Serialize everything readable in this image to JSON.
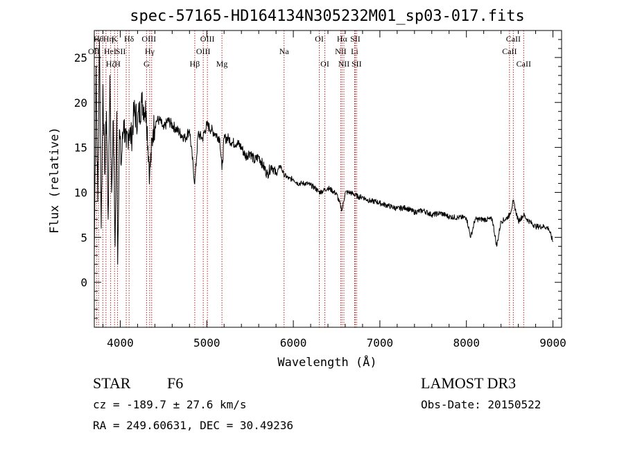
{
  "chart_data": {
    "type": "line",
    "title": "spec-57165-HD164134N305232M01_sp03-017.fits",
    "xlabel": "Wavelength (Å)",
    "ylabel": "Flux (relative)",
    "xlim": [
      3700,
      9100
    ],
    "ylim": [
      -5,
      28
    ],
    "xticks": [
      4000,
      5000,
      6000,
      7000,
      8000,
      9000
    ],
    "yticks": [
      0,
      5,
      10,
      15,
      20,
      25
    ],
    "series": [
      {
        "name": "flux",
        "x": [
          3700,
          3720,
          3740,
          3760,
          3780,
          3800,
          3820,
          3840,
          3860,
          3880,
          3900,
          3920,
          3940,
          3960,
          3970,
          3990,
          4010,
          4040,
          4070,
          4100,
          4130,
          4160,
          4200,
          4250,
          4300,
          4340,
          4380,
          4420,
          4460,
          4500,
          4550,
          4600,
          4650,
          4700,
          4750,
          4800,
          4861,
          4900,
          4950,
          5000,
          5050,
          5100,
          5150,
          5175,
          5200,
          5250,
          5300,
          5350,
          5400,
          5450,
          5500,
          5550,
          5600,
          5650,
          5700,
          5750,
          5800,
          5850,
          5890,
          5950,
          6000,
          6050,
          6100,
          6150,
          6200,
          6250,
          6300,
          6350,
          6400,
          6450,
          6500,
          6563,
          6600,
          6650,
          6700,
          6750,
          6800,
          6850,
          6900,
          6950,
          7000,
          7100,
          7200,
          7300,
          7400,
          7500,
          7600,
          7700,
          7800,
          7900,
          8000,
          8050,
          8100,
          8200,
          8300,
          8350,
          8400,
          8450,
          8500,
          8542,
          8600,
          8662,
          8700,
          8800,
          8900,
          8950,
          9000
        ],
        "values": [
          3,
          24,
          9,
          27,
          6,
          22,
          12,
          19,
          7,
          23,
          10,
          18,
          4,
          19,
          2,
          17,
          13,
          18,
          15,
          17,
          16,
          19,
          18,
          20,
          19,
          12,
          17,
          18,
          18,
          17,
          18,
          17.5,
          17,
          16.5,
          16,
          17,
          11,
          16.5,
          16,
          17.5,
          17,
          16.5,
          16,
          12.5,
          16,
          16,
          15.5,
          15.5,
          15,
          14,
          14.5,
          13.5,
          14,
          13,
          12,
          13,
          12,
          13,
          12,
          11.5,
          11.5,
          11,
          11,
          11,
          10.8,
          10.5,
          10,
          10.2,
          10.5,
          10.2,
          9.8,
          8,
          10,
          10,
          9.8,
          9.5,
          9.5,
          9.2,
          9,
          9,
          8.8,
          8.5,
          8.2,
          8.3,
          7.8,
          8,
          7.5,
          7.7,
          7.3,
          7.2,
          7.2,
          5,
          7,
          7,
          7,
          4,
          6.8,
          7,
          7.5,
          9,
          6.8,
          7.5,
          7,
          6.2,
          6.2,
          6,
          4.5
        ]
      }
    ],
    "line_markers": [
      {
        "wl": 3750,
        "row": 0,
        "label": "Hθ",
        "label_dx": 0
      },
      {
        "wl": 3798,
        "row": 0,
        "label": "Hη",
        "label_dx": 8
      },
      {
        "wl": 3727,
        "row": 1,
        "label": "OII",
        "label_dx": -4
      },
      {
        "wl": 3835,
        "row": 1,
        "label": "HeI",
        "label_dx": 6
      },
      {
        "wl": 3889,
        "row": 2,
        "label": "Hζ",
        "label_dx": 0
      },
      {
        "wl": 3934,
        "row": 0,
        "label": "K",
        "label_dx": 0
      },
      {
        "wl": 3969,
        "row": 2,
        "label": "H",
        "label_dx": 0
      },
      {
        "wl": 4069,
        "row": 1,
        "label": "SII",
        "label_dx": -8
      },
      {
        "wl": 4102,
        "row": 0,
        "label": "Hδ",
        "label_dx": 0
      },
      {
        "wl": 4304,
        "row": 2,
        "label": "G",
        "label_dx": 0
      },
      {
        "wl": 4340,
        "row": 1,
        "label": "Hγ",
        "label_dx": 0
      },
      {
        "wl": 4363,
        "row": 0,
        "label": "OIII",
        "label_dx": -4
      },
      {
        "wl": 4861,
        "row": 2,
        "label": "Hβ",
        "label_dx": 0
      },
      {
        "wl": 4959,
        "row": 1,
        "label": "OIII",
        "label_dx": 0
      },
      {
        "wl": 5007,
        "row": 0,
        "label": "OIII",
        "label_dx": 0
      },
      {
        "wl": 5175,
        "row": 2,
        "label": "Mg",
        "label_dx": 0
      },
      {
        "wl": 5893,
        "row": 1,
        "label": "Na",
        "label_dx": 0
      },
      {
        "wl": 6300,
        "row": 0,
        "label": "OI",
        "label_dx": 0
      },
      {
        "wl": 6364,
        "row": 2,
        "label": "OI",
        "label_dx": 0
      },
      {
        "wl": 6548,
        "row": 1,
        "label": "NII",
        "label_dx": 0
      },
      {
        "wl": 6563,
        "row": 0,
        "label": "Hα",
        "label_dx": 0
      },
      {
        "wl": 6584,
        "row": 2,
        "label": "NII",
        "label_dx": 0
      },
      {
        "wl": 6708,
        "row": 1,
        "label": "Li",
        "label_dx": 0
      },
      {
        "wl": 6716,
        "row": 0,
        "label": "SII",
        "label_dx": 0
      },
      {
        "wl": 6731,
        "row": 2,
        "label": "SII",
        "label_dx": 0
      },
      {
        "wl": 8498,
        "row": 1,
        "label": "CaII",
        "label_dx": 0
      },
      {
        "wl": 8542,
        "row": 0,
        "label": "CaII",
        "label_dx": 0
      },
      {
        "wl": 8662,
        "row": 2,
        "label": "CaII",
        "label_dx": 0
      }
    ]
  },
  "info": {
    "object_class": "STAR",
    "subclass": "F6",
    "survey": "LAMOST DR3",
    "cz": "cz = -189.7 ± 27.6 km/s",
    "obs_date": "Obs-Date: 20150522",
    "coords": "RA = 249.60631, DEC =  30.49236"
  },
  "colors": {
    "marker": "#b22222",
    "spectrum": "#000000",
    "frame": "#000000"
  }
}
